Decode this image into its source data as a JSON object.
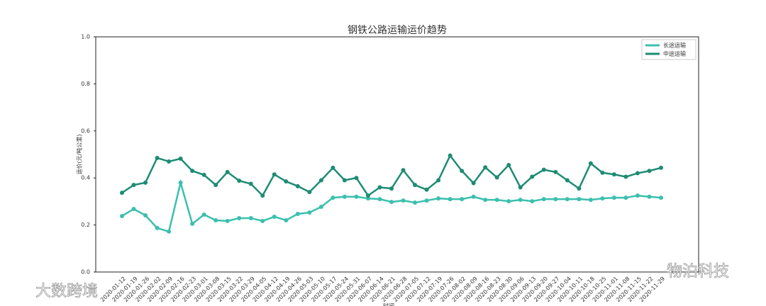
{
  "chart_data": {
    "type": "line",
    "title": "钢铁公路运输运价趋势",
    "xlabel": "时间",
    "ylabel": "运价(元/吨公里)",
    "categories": [
      "2020-01-12",
      "2020-01-19",
      "2020-01-26",
      "2020-02-02",
      "2020-02-09",
      "2020-02-16",
      "2020-02-23",
      "2020-03-01",
      "2020-03-08",
      "2020-03-15",
      "2020-03-22",
      "2020-03-29",
      "2020-04-05",
      "2020-04-12",
      "2020-04-19",
      "2020-04-26",
      "2020-05-03",
      "2020-05-10",
      "2020-05-17",
      "2020-05-24",
      "2020-05-31",
      "2020-06-07",
      "2020-06-14",
      "2020-06-21",
      "2020-06-28",
      "2020-07-05",
      "2020-07-12",
      "2020-07-19",
      "2020-07-26",
      "2020-08-02",
      "2020-08-09",
      "2020-08-16",
      "2020-08-23",
      "2020-08-30",
      "2020-09-06",
      "2020-09-13",
      "2020-09-20",
      "2020-09-27",
      "2020-10-04",
      "2020-10-11",
      "2020-10-18",
      "2020-10-25",
      "2020-11-01",
      "2020-11-08",
      "2020-11-15",
      "2020-11-22",
      "2020-11-29"
    ],
    "series": [
      {
        "name": "长途运输",
        "color": "#3cbfae",
        "values": [
          0.238,
          0.268,
          0.241,
          0.187,
          0.172,
          0.38,
          0.205,
          0.244,
          0.22,
          0.217,
          0.229,
          0.229,
          0.217,
          0.235,
          0.22,
          0.247,
          0.253,
          0.277,
          0.316,
          0.32,
          0.32,
          0.313,
          0.31,
          0.298,
          0.304,
          0.295,
          0.304,
          0.313,
          0.31,
          0.31,
          0.32,
          0.307,
          0.307,
          0.301,
          0.307,
          0.301,
          0.31,
          0.31,
          0.31,
          0.31,
          0.307,
          0.313,
          0.316,
          0.316,
          0.325,
          0.32,
          0.316
        ]
      },
      {
        "name": "中途运输",
        "color": "#1e8c73",
        "values": [
          0.337,
          0.37,
          0.38,
          0.485,
          0.47,
          0.482,
          0.43,
          0.413,
          0.37,
          0.425,
          0.388,
          0.375,
          0.325,
          0.415,
          0.385,
          0.365,
          0.34,
          0.39,
          0.443,
          0.39,
          0.4,
          0.325,
          0.36,
          0.355,
          0.433,
          0.37,
          0.35,
          0.39,
          0.495,
          0.43,
          0.378,
          0.445,
          0.402,
          0.455,
          0.36,
          0.405,
          0.435,
          0.425,
          0.39,
          0.355,
          0.462,
          0.422,
          0.415,
          0.405,
          0.42,
          0.43,
          0.443
        ]
      }
    ],
    "ylim": [
      0,
      1
    ],
    "yticks": [
      {
        "value": 0,
        "label": "0.0"
      },
      {
        "value": 0.2,
        "label": "0.2"
      },
      {
        "value": 0.4,
        "label": "0.4"
      },
      {
        "value": 0.6,
        "label": "0.6"
      },
      {
        "value": 0.8,
        "label": "0.8"
      },
      {
        "value": 1,
        "label": "1.0"
      }
    ],
    "legend": "upper right",
    "grid": false,
    "watermarks": [
      "物泊科技",
      "大数跨境"
    ]
  }
}
